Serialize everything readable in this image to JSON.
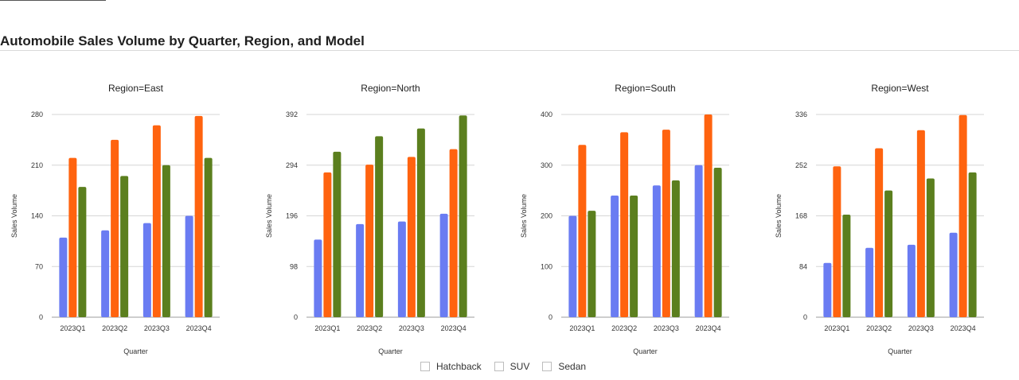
{
  "page": {
    "title": "Automobile Sales Volume by Quarter, Region, and Model"
  },
  "colors": {
    "Hatchback": "#6a7cf2",
    "SUV": "#ff630f",
    "Sedan": "#5b7f1e"
  },
  "legend": {
    "items": [
      "Hatchback",
      "SUV",
      "Sedan"
    ]
  },
  "chart_data": [
    {
      "type": "bar",
      "title": "Region=East",
      "xlabel": "Quarter",
      "ylabel": "Sales Volume",
      "categories": [
        "2023Q1",
        "2023Q2",
        "2023Q3",
        "2023Q4"
      ],
      "ylim": [
        0,
        280
      ],
      "yticks": [
        0,
        70,
        140,
        210,
        280
      ],
      "grid": true,
      "series": [
        {
          "name": "Hatchback",
          "values": [
            110,
            120,
            130,
            140
          ]
        },
        {
          "name": "SUV",
          "values": [
            220,
            245,
            265,
            278
          ]
        },
        {
          "name": "Sedan",
          "values": [
            180,
            195,
            210,
            220
          ]
        }
      ]
    },
    {
      "type": "bar",
      "title": "Region=North",
      "xlabel": "Quarter",
      "ylabel": "Sales Volume",
      "categories": [
        "2023Q1",
        "2023Q2",
        "2023Q3",
        "2023Q4"
      ],
      "ylim": [
        0,
        392
      ],
      "yticks": [
        0,
        98,
        196,
        294,
        392
      ],
      "grid": true,
      "series": [
        {
          "name": "Hatchback",
          "values": [
            150,
            180,
            185,
            200
          ]
        },
        {
          "name": "SUV",
          "values": [
            280,
            295,
            310,
            325
          ]
        },
        {
          "name": "Sedan",
          "values": [
            320,
            350,
            365,
            390
          ]
        }
      ]
    },
    {
      "type": "bar",
      "title": "Region=South",
      "xlabel": "Quarter",
      "ylabel": "Sales Volume",
      "categories": [
        "2023Q1",
        "2023Q2",
        "2023Q3",
        "2023Q4"
      ],
      "ylim": [
        0,
        400
      ],
      "yticks": [
        0,
        100,
        200,
        300,
        400
      ],
      "grid": true,
      "series": [
        {
          "name": "Hatchback",
          "values": [
            200,
            240,
            260,
            300
          ]
        },
        {
          "name": "SUV",
          "values": [
            340,
            365,
            370,
            400
          ]
        },
        {
          "name": "Sedan",
          "values": [
            210,
            240,
            270,
            295
          ]
        }
      ]
    },
    {
      "type": "bar",
      "title": "Region=West",
      "xlabel": "Quarter",
      "ylabel": "Sales Volume",
      "categories": [
        "2023Q1",
        "2023Q2",
        "2023Q3",
        "2023Q4"
      ],
      "ylim": [
        0,
        336
      ],
      "yticks": [
        0,
        84,
        168,
        252,
        336
      ],
      "grid": true,
      "series": [
        {
          "name": "Hatchback",
          "values": [
            90,
            115,
            120,
            140
          ]
        },
        {
          "name": "SUV",
          "values": [
            250,
            280,
            310,
            335
          ]
        },
        {
          "name": "Sedan",
          "values": [
            170,
            210,
            230,
            240
          ]
        }
      ]
    }
  ]
}
